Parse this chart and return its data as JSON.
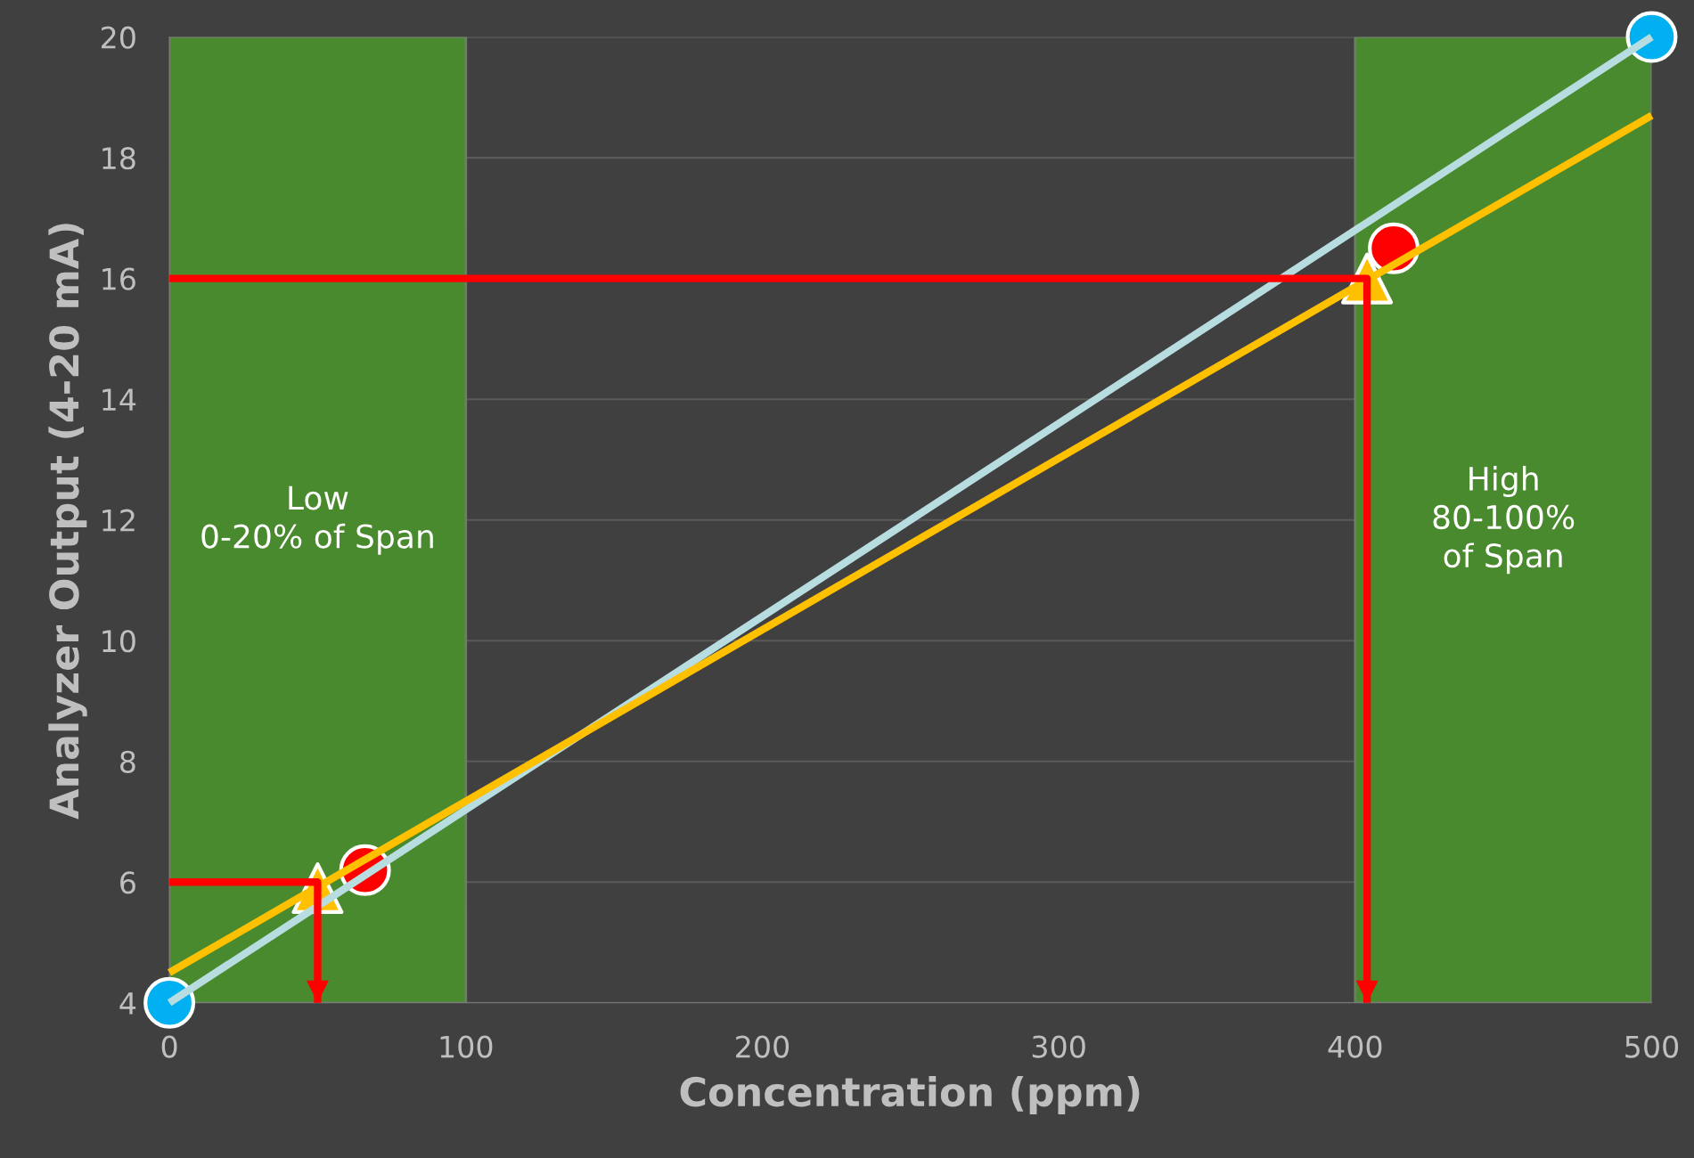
{
  "chart_data": {
    "type": "line",
    "xlabel": "Concentration (ppm)",
    "ylabel": "Analyzer Output (4-20 mA)",
    "xlim": [
      0,
      500
    ],
    "xticks": [
      0,
      100,
      200,
      300,
      400,
      500
    ],
    "ylim": [
      4,
      20
    ],
    "yticks": [
      4,
      6,
      8,
      10,
      12,
      14,
      16,
      18,
      20
    ],
    "grid": "y",
    "legend": false,
    "bands": [
      {
        "axis": "x",
        "from": 0,
        "to": 100,
        "label": "Low\n0-20% of Span",
        "color": "#4a8a2e"
      },
      {
        "axis": "x",
        "from": 400,
        "to": 500,
        "label": "High\n80-100%\nof Span",
        "color": "#4a8a2e"
      }
    ],
    "series": [
      {
        "color": "#ff0000",
        "x": [
          0,
          50,
          50
        ],
        "values": [
          6,
          6,
          4
        ],
        "marker": "none"
      },
      {
        "color": "#ff0000",
        "x": [
          0,
          404,
          404
        ],
        "values": [
          16,
          16,
          4
        ],
        "marker": "none"
      },
      {
        "color": "#b7dde0",
        "x": [
          0,
          500
        ],
        "values": [
          4,
          20
        ],
        "marker": "none"
      },
      {
        "color": "#ffc000",
        "x": [
          0,
          500
        ],
        "values": [
          4.5,
          18.7
        ],
        "marker": "none"
      },
      {
        "type": "scatter",
        "color": "#00b0f0",
        "x": [
          0,
          500
        ],
        "values": [
          4,
          20
        ],
        "marker": "circle"
      },
      {
        "type": "scatter",
        "color": "#ffc000",
        "x": [
          50,
          404
        ],
        "values": [
          5.9,
          16
        ],
        "marker": "triangle"
      },
      {
        "type": "scatter",
        "color": "#ff0000",
        "x": [
          66,
          413
        ],
        "values": [
          6.2,
          16.5
        ],
        "marker": "circle"
      }
    ]
  }
}
